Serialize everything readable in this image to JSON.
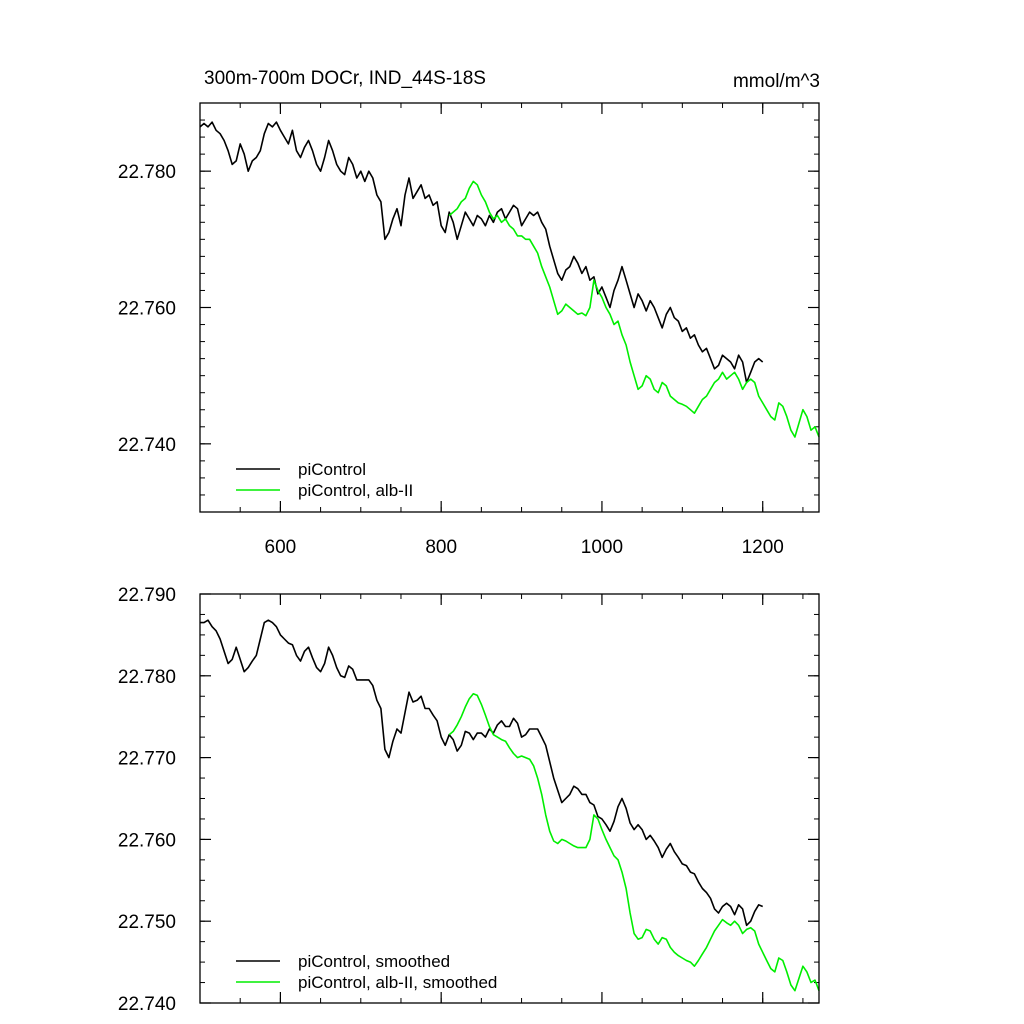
{
  "chart_data": [
    {
      "type": "line",
      "title": "300m-700m DOCr, IND_44S-18S",
      "units": "mmol/m^3",
      "xlim": [
        500,
        1270
      ],
      "ylim": [
        22.73,
        22.79
      ],
      "x_ticks": [
        600,
        800,
        1000,
        1200
      ],
      "x_tick_labels": [
        "600",
        "800",
        "1000",
        "1200"
      ],
      "y_ticks": [
        22.74,
        22.76,
        22.78
      ],
      "y_tick_labels": [
        "22.740",
        "22.760",
        "22.780"
      ],
      "legend_position": "bottom-left",
      "series": [
        {
          "name": "piControl",
          "color": "#000000",
          "x": [
            500,
            505,
            510,
            515,
            520,
            525,
            530,
            535,
            540,
            545,
            550,
            555,
            560,
            565,
            570,
            575,
            580,
            585,
            590,
            595,
            600,
            605,
            610,
            615,
            620,
            625,
            630,
            635,
            640,
            645,
            650,
            655,
            660,
            665,
            670,
            675,
            680,
            685,
            690,
            695,
            700,
            705,
            710,
            715,
            720,
            725,
            730,
            735,
            740,
            745,
            750,
            755,
            760,
            765,
            770,
            775,
            780,
            785,
            790,
            795,
            800,
            805,
            810,
            815,
            820,
            825,
            830,
            835,
            840,
            845,
            850,
            855,
            860,
            865,
            870,
            875,
            880,
            885,
            890,
            895,
            900,
            905,
            910,
            915,
            920,
            925,
            930,
            935,
            940,
            945,
            950,
            955,
            960,
            965,
            970,
            975,
            980,
            985,
            990,
            995,
            1000,
            1005,
            1010,
            1015,
            1020,
            1025,
            1030,
            1035,
            1040,
            1045,
            1050,
            1055,
            1060,
            1065,
            1070,
            1075,
            1080,
            1085,
            1090,
            1095,
            1100,
            1105,
            1110,
            1115,
            1120,
            1125,
            1130,
            1135,
            1140,
            1145,
            1150,
            1155,
            1160,
            1165,
            1170,
            1175,
            1180,
            1185,
            1190,
            1195,
            1200
          ],
          "y": [
            22.7865,
            22.787,
            22.7865,
            22.7872,
            22.786,
            22.7855,
            22.7845,
            22.783,
            22.781,
            22.7815,
            22.784,
            22.7825,
            22.78,
            22.7815,
            22.782,
            22.783,
            22.7855,
            22.787,
            22.7865,
            22.7872,
            22.786,
            22.785,
            22.784,
            22.786,
            22.783,
            22.782,
            22.7835,
            22.7845,
            22.783,
            22.781,
            22.78,
            22.782,
            22.7845,
            22.783,
            22.781,
            22.78,
            22.7795,
            22.782,
            22.781,
            22.779,
            22.78,
            22.7785,
            22.78,
            22.779,
            22.7765,
            22.7755,
            22.77,
            22.771,
            22.773,
            22.7745,
            22.772,
            22.7765,
            22.779,
            22.776,
            22.777,
            22.778,
            22.776,
            22.7765,
            22.775,
            22.7755,
            22.772,
            22.771,
            22.774,
            22.7725,
            22.77,
            22.772,
            22.774,
            22.773,
            22.772,
            22.7735,
            22.773,
            22.772,
            22.7735,
            22.7725,
            22.774,
            22.7745,
            22.773,
            22.774,
            22.775,
            22.7745,
            22.772,
            22.773,
            22.774,
            22.7735,
            22.774,
            22.7725,
            22.7715,
            22.769,
            22.767,
            22.765,
            22.764,
            22.7655,
            22.766,
            22.7675,
            22.7665,
            22.765,
            22.766,
            22.764,
            22.7645,
            22.762,
            22.763,
            22.7615,
            22.76,
            22.7625,
            22.764,
            22.766,
            22.764,
            22.762,
            22.76,
            22.762,
            22.761,
            22.7595,
            22.761,
            22.76,
            22.7585,
            22.757,
            22.759,
            22.76,
            22.7585,
            22.758,
            22.7565,
            22.757,
            22.7555,
            22.756,
            22.7545,
            22.7535,
            22.754,
            22.7525,
            22.751,
            22.7515,
            22.753,
            22.7525,
            22.752,
            22.751,
            22.753,
            22.752,
            22.749,
            22.7505,
            22.752,
            22.7525,
            22.752
          ]
        },
        {
          "name": "piControl, alb-II",
          "color": "#00ee00",
          "x": [
            810,
            815,
            820,
            825,
            830,
            835,
            840,
            845,
            850,
            855,
            860,
            865,
            870,
            875,
            880,
            885,
            890,
            895,
            900,
            905,
            910,
            915,
            920,
            925,
            930,
            935,
            940,
            945,
            950,
            955,
            960,
            965,
            970,
            975,
            980,
            985,
            990,
            995,
            1000,
            1005,
            1010,
            1015,
            1020,
            1025,
            1030,
            1035,
            1040,
            1045,
            1050,
            1055,
            1060,
            1065,
            1070,
            1075,
            1080,
            1085,
            1090,
            1095,
            1100,
            1105,
            1110,
            1115,
            1120,
            1125,
            1130,
            1135,
            1140,
            1145,
            1150,
            1155,
            1160,
            1165,
            1170,
            1175,
            1180,
            1185,
            1190,
            1195,
            1200,
            1205,
            1210,
            1215,
            1220,
            1225,
            1230,
            1235,
            1240,
            1245,
            1250,
            1255,
            1260,
            1265,
            1270
          ],
          "y": [
            22.7735,
            22.774,
            22.7745,
            22.7755,
            22.776,
            22.7775,
            22.7785,
            22.778,
            22.7765,
            22.7755,
            22.774,
            22.773,
            22.7735,
            22.7725,
            22.773,
            22.772,
            22.7715,
            22.7705,
            22.7705,
            22.77,
            22.77,
            22.769,
            22.768,
            22.766,
            22.7645,
            22.763,
            22.761,
            22.759,
            22.7595,
            22.7605,
            22.76,
            22.7595,
            22.759,
            22.7592,
            22.7588,
            22.76,
            22.764,
            22.7625,
            22.7615,
            22.76,
            22.759,
            22.7575,
            22.758,
            22.756,
            22.7545,
            22.752,
            22.75,
            22.748,
            22.7485,
            22.75,
            22.7495,
            22.748,
            22.7475,
            22.749,
            22.7485,
            22.747,
            22.7465,
            22.746,
            22.7458,
            22.7455,
            22.745,
            22.7445,
            22.7455,
            22.7465,
            22.747,
            22.748,
            22.749,
            22.7495,
            22.7505,
            22.7495,
            22.75,
            22.7505,
            22.7495,
            22.748,
            22.749,
            22.7495,
            22.749,
            22.747,
            22.746,
            22.745,
            22.744,
            22.7435,
            22.746,
            22.7455,
            22.744,
            22.742,
            22.741,
            22.743,
            22.745,
            22.744,
            22.742,
            22.7425,
            22.741
          ]
        }
      ]
    },
    {
      "type": "line",
      "xlim": [
        500,
        1270
      ],
      "ylim": [
        22.74,
        22.79
      ],
      "x_ticks": [
        600,
        800,
        1000,
        1200
      ],
      "y_ticks": [
        22.74,
        22.75,
        22.76,
        22.77,
        22.78,
        22.79
      ],
      "y_tick_labels": [
        "22.740",
        "22.750",
        "22.760",
        "22.770",
        "22.780",
        "22.790"
      ],
      "legend_position": "bottom-left",
      "series": [
        {
          "name": "piControl, smoothed",
          "color": "#000000",
          "x": [
            500,
            505,
            510,
            515,
            520,
            525,
            530,
            535,
            540,
            545,
            550,
            555,
            560,
            565,
            570,
            575,
            580,
            585,
            590,
            595,
            600,
            605,
            610,
            615,
            620,
            625,
            630,
            635,
            640,
            645,
            650,
            655,
            660,
            665,
            670,
            675,
            680,
            685,
            690,
            695,
            700,
            705,
            710,
            715,
            720,
            725,
            730,
            735,
            740,
            745,
            750,
            755,
            760,
            765,
            770,
            775,
            780,
            785,
            790,
            795,
            800,
            805,
            810,
            815,
            820,
            825,
            830,
            835,
            840,
            845,
            850,
            855,
            860,
            865,
            870,
            875,
            880,
            885,
            890,
            895,
            900,
            905,
            910,
            915,
            920,
            925,
            930,
            935,
            940,
            945,
            950,
            955,
            960,
            965,
            970,
            975,
            980,
            985,
            990,
            995,
            1000,
            1005,
            1010,
            1015,
            1020,
            1025,
            1030,
            1035,
            1040,
            1045,
            1050,
            1055,
            1060,
            1065,
            1070,
            1075,
            1080,
            1085,
            1090,
            1095,
            1100,
            1105,
            1110,
            1115,
            1120,
            1125,
            1130,
            1135,
            1140,
            1145,
            1150,
            1155,
            1160,
            1165,
            1170,
            1175,
            1180,
            1185,
            1190,
            1195,
            1200
          ],
          "y": [
            22.7865,
            22.7865,
            22.7868,
            22.786,
            22.7855,
            22.7845,
            22.783,
            22.7815,
            22.782,
            22.7835,
            22.782,
            22.7805,
            22.781,
            22.7818,
            22.7825,
            22.7845,
            22.7865,
            22.7868,
            22.7865,
            22.786,
            22.785,
            22.7845,
            22.784,
            22.7838,
            22.7825,
            22.7818,
            22.783,
            22.7835,
            22.7822,
            22.781,
            22.7805,
            22.7815,
            22.7835,
            22.7825,
            22.781,
            22.78,
            22.7798,
            22.7812,
            22.7808,
            22.7795,
            22.7795,
            22.7795,
            22.7795,
            22.7788,
            22.777,
            22.776,
            22.771,
            22.77,
            22.772,
            22.7735,
            22.773,
            22.7755,
            22.778,
            22.7768,
            22.777,
            22.7775,
            22.776,
            22.776,
            22.7752,
            22.7745,
            22.7725,
            22.7715,
            22.7728,
            22.7722,
            22.7708,
            22.7715,
            22.7732,
            22.773,
            22.7722,
            22.773,
            22.773,
            22.7725,
            22.7735,
            22.773,
            22.774,
            22.7745,
            22.7738,
            22.7738,
            22.7748,
            22.7742,
            22.7725,
            22.7728,
            22.7735,
            22.7735,
            22.7735,
            22.7725,
            22.7715,
            22.7695,
            22.7675,
            22.766,
            22.7645,
            22.765,
            22.7655,
            22.7665,
            22.7662,
            22.7655,
            22.7655,
            22.7645,
            22.7642,
            22.7628,
            22.7625,
            22.7618,
            22.761,
            22.7622,
            22.764,
            22.765,
            22.7638,
            22.762,
            22.7612,
            22.7618,
            22.7612,
            22.76,
            22.7605,
            22.7598,
            22.759,
            22.7578,
            22.7588,
            22.7595,
            22.7585,
            22.7578,
            22.757,
            22.7568,
            22.756,
            22.7558,
            22.7548,
            22.754,
            22.7535,
            22.7528,
            22.7515,
            22.751,
            22.7518,
            22.7522,
            22.7518,
            22.7508,
            22.752,
            22.7515,
            22.7495,
            22.75,
            22.7512,
            22.752,
            22.7518
          ]
        },
        {
          "name": "piControl, alb-II, smoothed",
          "color": "#00ee00",
          "x": [
            810,
            815,
            820,
            825,
            830,
            835,
            840,
            845,
            850,
            855,
            860,
            865,
            870,
            875,
            880,
            885,
            890,
            895,
            900,
            905,
            910,
            915,
            920,
            925,
            930,
            935,
            940,
            945,
            950,
            955,
            960,
            965,
            970,
            975,
            980,
            985,
            990,
            995,
            1000,
            1005,
            1010,
            1015,
            1020,
            1025,
            1030,
            1035,
            1040,
            1045,
            1050,
            1055,
            1060,
            1065,
            1070,
            1075,
            1080,
            1085,
            1090,
            1095,
            1100,
            1105,
            1110,
            1115,
            1120,
            1125,
            1130,
            1135,
            1140,
            1145,
            1150,
            1155,
            1160,
            1165,
            1170,
            1175,
            1180,
            1185,
            1190,
            1195,
            1200,
            1205,
            1210,
            1215,
            1220,
            1225,
            1230,
            1235,
            1240,
            1245,
            1250,
            1255,
            1260,
            1265,
            1270
          ],
          "y": [
            22.7728,
            22.7732,
            22.774,
            22.775,
            22.7762,
            22.7772,
            22.7778,
            22.7776,
            22.7765,
            22.7752,
            22.7738,
            22.7728,
            22.7725,
            22.7722,
            22.772,
            22.7712,
            22.7705,
            22.77,
            22.7702,
            22.77,
            22.7698,
            22.769,
            22.7675,
            22.7655,
            22.763,
            22.761,
            22.7598,
            22.7595,
            22.76,
            22.7598,
            22.7595,
            22.7592,
            22.759,
            22.759,
            22.759,
            22.76,
            22.763,
            22.7625,
            22.7612,
            22.76,
            22.759,
            22.758,
            22.7575,
            22.756,
            22.754,
            22.751,
            22.7485,
            22.7478,
            22.748,
            22.749,
            22.7488,
            22.7478,
            22.7472,
            22.748,
            22.7478,
            22.7468,
            22.7462,
            22.7458,
            22.7455,
            22.7452,
            22.745,
            22.7445,
            22.7452,
            22.746,
            22.7468,
            22.7478,
            22.7488,
            22.7495,
            22.7502,
            22.7498,
            22.7495,
            22.75,
            22.7495,
            22.7485,
            22.749,
            22.7492,
            22.7488,
            22.7472,
            22.7462,
            22.7452,
            22.7442,
            22.7438,
            22.7455,
            22.7452,
            22.7438,
            22.7422,
            22.7415,
            22.743,
            22.7445,
            22.7438,
            22.7425,
            22.7428,
            22.7415
          ]
        }
      ]
    }
  ]
}
